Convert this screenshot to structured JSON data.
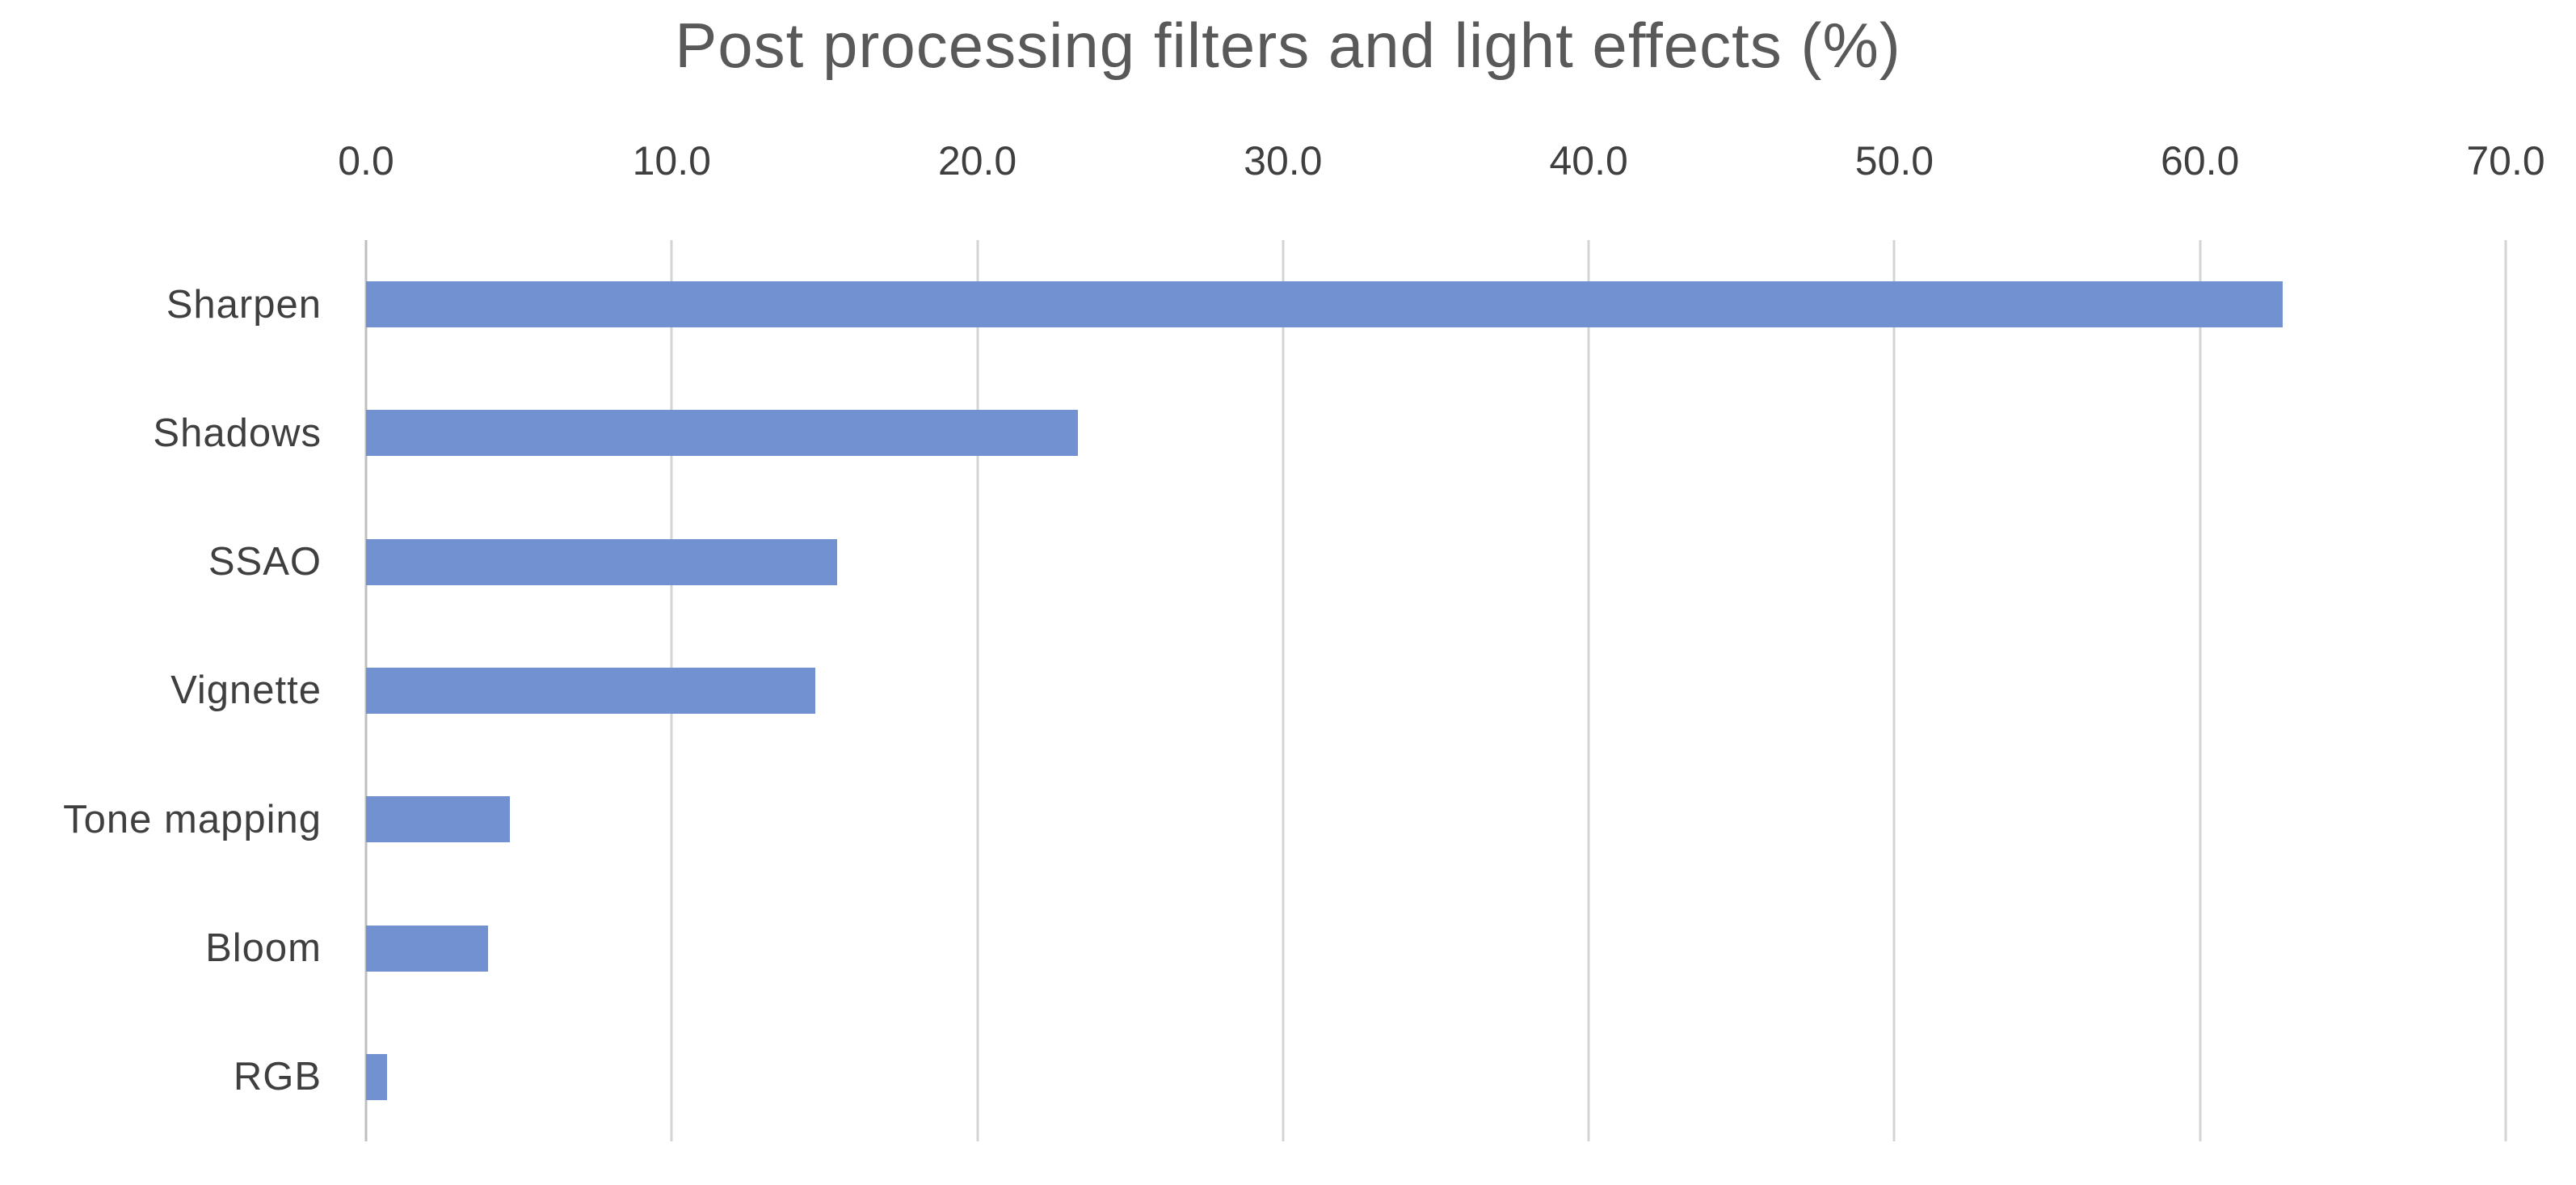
{
  "chart_data": {
    "type": "bar",
    "orientation": "horizontal",
    "title": "Post processing filters and light effects (%)",
    "categories": [
      "Sharpen",
      "Shadows",
      "SSAO",
      "Vignette",
      "Tone mapping",
      "Bloom",
      "RGB"
    ],
    "values": [
      62.7,
      23.3,
      15.4,
      14.7,
      4.7,
      4.0,
      0.7
    ],
    "xlabel": "",
    "ylabel": "",
    "xlim": [
      0,
      70
    ],
    "x_ticks": [
      0,
      10,
      20,
      30,
      40,
      50,
      60,
      70
    ],
    "x_tick_labels": [
      "0.0",
      "10.0",
      "20.0",
      "30.0",
      "40.0",
      "50.0",
      "60.0",
      "70.0"
    ],
    "tick_label_position": "top",
    "grid": true,
    "legend": false,
    "data_labels": false,
    "colors": {
      "bar": "#7191d0",
      "gridline": "#d4d4d4",
      "axis_line": "#bfbfbf",
      "title_text": "#595959",
      "label_text": "#3f3f3f",
      "background": "#ffffff"
    }
  }
}
